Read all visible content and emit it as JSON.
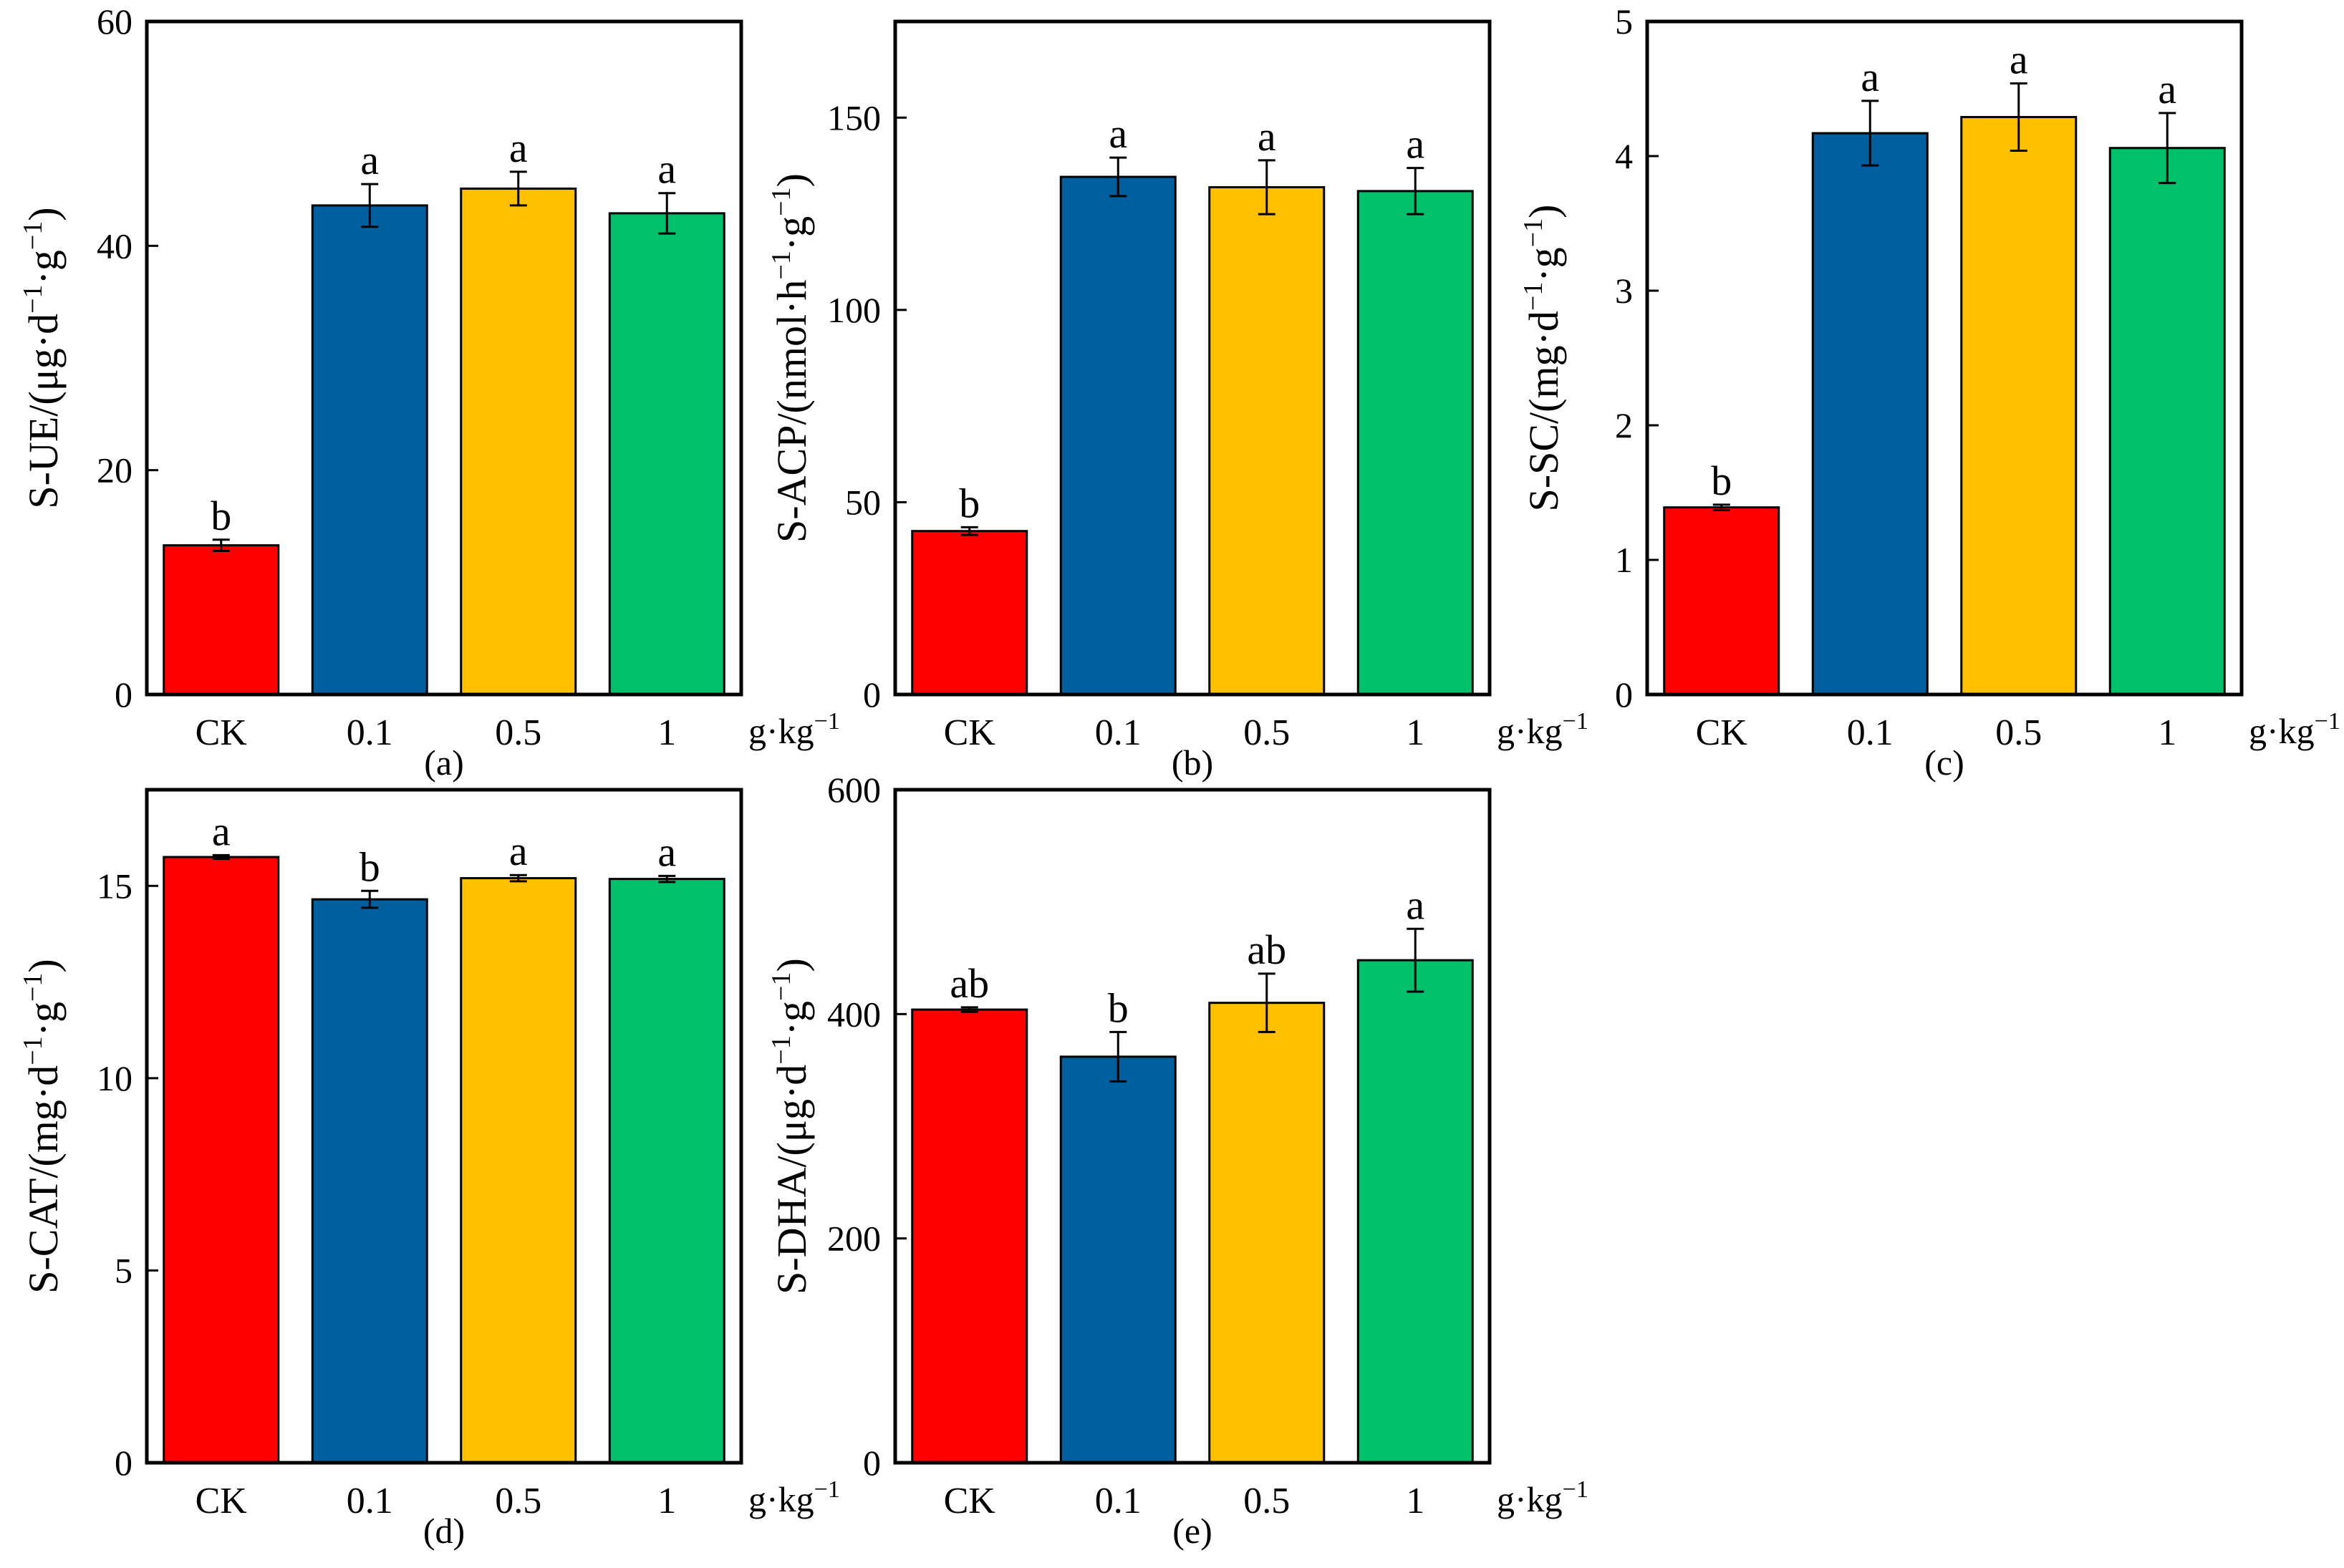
{
  "figure": {
    "charts": [
      {
        "type": "bar",
        "panel": "(a)",
        "ylabel_text": "S-UE/(μg·d",
        "ylabel_unit_tail": "·g",
        "ylabel_sup": "−1",
        "ylabel_close": ")",
        "categories": [
          "CK",
          "0.1",
          "0.5",
          "1"
        ],
        "unit": "g·kg",
        "unit_sup": "−1",
        "values": [
          13.3,
          43.6,
          45.1,
          42.9
        ],
        "errors": [
          0.5,
          1.9,
          1.5,
          1.8
        ],
        "sig": [
          "b",
          "a",
          "a",
          "a"
        ],
        "ylim": [
          0,
          60
        ],
        "yticks": [
          0,
          20,
          40,
          60
        ],
        "colors": [
          "#ff0000",
          "#005f9e",
          "#ffc000",
          "#00c06a"
        ]
      },
      {
        "type": "bar",
        "panel": "(b)",
        "ylabel_text": "S-ACP/(nmol·h",
        "ylabel_unit_tail": "·g",
        "ylabel_sup": "−1",
        "ylabel_close": ")",
        "categories": [
          "CK",
          "0.1",
          "0.5",
          "1"
        ],
        "unit": "g·kg",
        "unit_sup": "−1",
        "values": [
          42.5,
          134.6,
          131.9,
          130.9
        ],
        "errors": [
          1.0,
          5.0,
          7.0,
          6.0
        ],
        "sig": [
          "b",
          "a",
          "a",
          "a"
        ],
        "ylim": [
          0,
          175
        ],
        "yticks": [
          0,
          50,
          100,
          150
        ],
        "colors": [
          "#ff0000",
          "#005f9e",
          "#ffc000",
          "#00c06a"
        ]
      },
      {
        "type": "bar",
        "panel": "(c)",
        "ylabel_text": "S-SC/(mg·d",
        "ylabel_unit_tail": "·g",
        "ylabel_sup": "−1",
        "ylabel_close": ")",
        "categories": [
          "CK",
          "0.1",
          "0.5",
          "1"
        ],
        "unit": "g·kg",
        "unit_sup": "−1",
        "values": [
          1.39,
          4.17,
          4.29,
          4.06
        ],
        "errors": [
          0.02,
          0.24,
          0.25,
          0.26
        ],
        "sig": [
          "b",
          "a",
          "a",
          "a"
        ],
        "ylim": [
          0,
          5
        ],
        "yticks": [
          0,
          1,
          2,
          3,
          4,
          5
        ],
        "colors": [
          "#ff0000",
          "#005f9e",
          "#ffc000",
          "#00c06a"
        ]
      },
      {
        "type": "bar",
        "panel": "(d)",
        "ylabel_text": "S-CAT/(mg·d",
        "ylabel_unit_tail": "·g",
        "ylabel_sup": "−1",
        "ylabel_close": ")",
        "categories": [
          "CK",
          "0.1",
          "0.5",
          "1"
        ],
        "unit": "g·kg",
        "unit_sup": "−1",
        "values": [
          15.75,
          14.65,
          15.2,
          15.18
        ],
        "errors": [
          0.05,
          0.22,
          0.08,
          0.08
        ],
        "sig": [
          "a",
          "b",
          "a",
          "a"
        ],
        "ylim": [
          0,
          17.5
        ],
        "yticks": [
          0,
          5,
          10,
          15
        ],
        "colors": [
          "#ff0000",
          "#005f9e",
          "#ffc000",
          "#00c06a"
        ]
      },
      {
        "type": "bar",
        "panel": "(e)",
        "ylabel_text": "S-DHA/(μg·d",
        "ylabel_unit_tail": "·g",
        "ylabel_sup": "−1",
        "ylabel_close": ")",
        "categories": [
          "CK",
          "0.1",
          "0.5",
          "1"
        ],
        "unit": "g·kg",
        "unit_sup": "−1",
        "values": [
          404,
          362,
          410,
          448
        ],
        "errors": [
          2,
          22,
          26,
          28
        ],
        "sig": [
          "ab",
          "b",
          "ab",
          "a"
        ],
        "ylim": [
          0,
          600
        ],
        "yticks": [
          0,
          200,
          400,
          600
        ],
        "colors": [
          "#ff0000",
          "#005f9e",
          "#ffc000",
          "#00c06a"
        ]
      }
    ]
  }
}
